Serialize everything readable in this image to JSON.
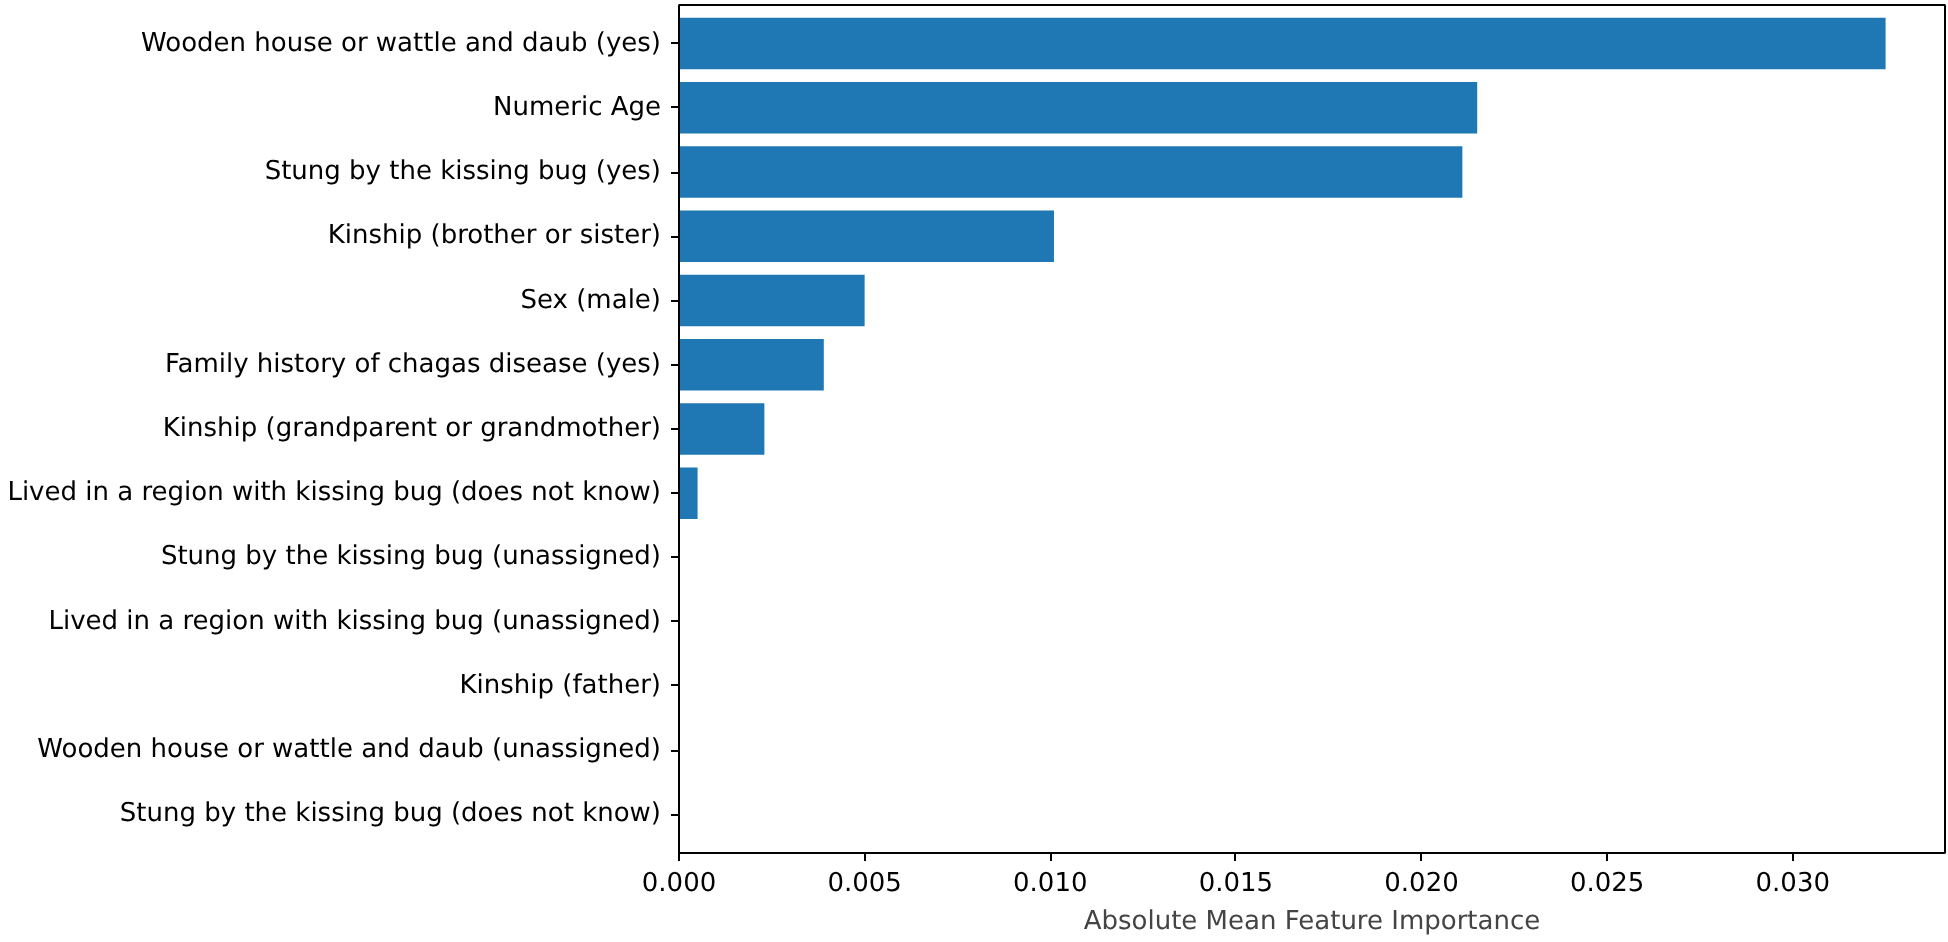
{
  "chart_data": {
    "type": "bar",
    "orientation": "horizontal",
    "xlabel": "Absolute Mean Feature Importance",
    "categories": [
      "Wooden house or wattle and daub (yes)",
      "Numeric Age",
      "Stung by the kissing bug (yes)",
      "Kinship (brother or sister)",
      "Sex (male)",
      "Family history of chagas disease (yes)",
      "Kinship (grandparent or grandmother)",
      "Lived in a region with kissing bug (does not know)",
      "Stung by the kissing bug (unassigned)",
      "Lived in a region with kissing bug (unassigned)",
      "Kinship (father)",
      "Wooden house or wattle and daub (unassigned)",
      "Stung by the kissing bug (does not know)"
    ],
    "values": [
      0.0325,
      0.0215,
      0.0211,
      0.0101,
      0.005,
      0.0039,
      0.0023,
      0.0005,
      0,
      0,
      0,
      0,
      0
    ],
    "color": "#1f77b4",
    "xlim": [
      0,
      0.0341
    ],
    "xticks": [
      {
        "value": 0,
        "label": "0.000"
      },
      {
        "value": 0.005,
        "label": "0.005"
      },
      {
        "value": 0.01,
        "label": "0.010"
      },
      {
        "value": 0.015,
        "label": "0.015"
      },
      {
        "value": 0.02,
        "label": "0.020"
      },
      {
        "value": 0.025,
        "label": "0.025"
      },
      {
        "value": 0.03,
        "label": "0.030"
      }
    ],
    "grid": false
  }
}
